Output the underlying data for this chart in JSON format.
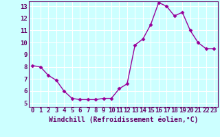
{
  "x": [
    0,
    1,
    2,
    3,
    4,
    5,
    6,
    7,
    8,
    9,
    10,
    11,
    12,
    13,
    14,
    15,
    16,
    17,
    18,
    19,
    20,
    21,
    22,
    23
  ],
  "y": [
    8.1,
    8.0,
    7.3,
    6.9,
    6.0,
    5.4,
    5.3,
    5.3,
    5.3,
    5.4,
    5.4,
    6.2,
    6.6,
    9.8,
    10.3,
    11.5,
    13.3,
    13.0,
    12.2,
    12.5,
    11.0,
    10.0,
    9.5,
    9.5
  ],
  "line_color": "#990099",
  "marker": "D",
  "marker_size": 2.5,
  "xlabel": "Windchill (Refroidissement éolien,°C)",
  "xlabel_fontsize": 7,
  "xlim_min": -0.5,
  "xlim_max": 23.5,
  "ylim_min": 4.7,
  "ylim_max": 13.4,
  "yticks": [
    5,
    6,
    7,
    8,
    9,
    10,
    11,
    12,
    13
  ],
  "xticks": [
    0,
    1,
    2,
    3,
    4,
    5,
    6,
    7,
    8,
    9,
    10,
    11,
    12,
    13,
    14,
    15,
    16,
    17,
    18,
    19,
    20,
    21,
    22,
    23
  ],
  "xtick_labels": [
    "0",
    "1",
    "2",
    "3",
    "4",
    "5",
    "6",
    "7",
    "8",
    "9",
    "10",
    "11",
    "12",
    "13",
    "14",
    "15",
    "16",
    "17",
    "18",
    "19",
    "20",
    "21",
    "22",
    "23"
  ],
  "background_color": "#ccffff",
  "grid_color": "#aadddd",
  "tick_color": "#660066",
  "spine_color": "#660066",
  "tick_fontsize": 6.5,
  "xlabel_color": "#660066",
  "line_width": 1.0
}
